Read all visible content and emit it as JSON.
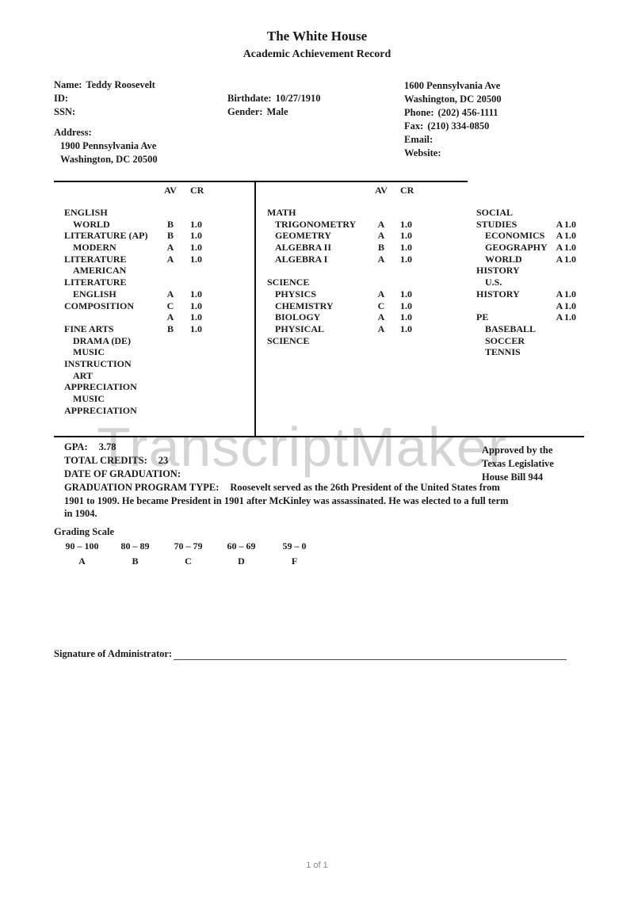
{
  "header": {
    "title": "The White House",
    "subtitle": "Academic Achievement Record"
  },
  "student": {
    "name_label": "Name:",
    "name": "Teddy Roosevelt",
    "id_label": "ID:",
    "id": "",
    "ssn_label": "SSN:",
    "ssn": "",
    "address_label": "Address:",
    "address_lines": [
      {
        "text": "1900 Pennsylvania Ave"
      },
      {
        "text": "Washington, DC 20500"
      }
    ],
    "birthdate_label": "Birthdate:",
    "birthdate": "10/27/1910",
    "gender_label": "Gender:",
    "gender": "Male"
  },
  "school": {
    "address_lines": [
      {
        "text": "1600 Pennsylvania Ave"
      },
      {
        "text": "Washington, DC 20500"
      }
    ],
    "phone_label": "Phone:",
    "phone": "(202) 456-1111",
    "fax_label": "Fax:",
    "fax": "(210) 334-0850",
    "email_label": "Email:",
    "email": "",
    "website_label": "Website:",
    "website": ""
  },
  "transcript": {
    "av_header": "AV",
    "cr_header": "CR",
    "col1_rows": [
      {
        "name": "ENGLISH",
        "indent": 0,
        "av": "",
        "cr": ""
      },
      {
        "name": "WORLD",
        "indent": 1,
        "av": "B",
        "cr": "1.0"
      },
      {
        "name": "LITERATURE (AP)",
        "indent": 0,
        "av": "B",
        "cr": "1.0"
      },
      {
        "name": "MODERN",
        "indent": 1,
        "av": "A",
        "cr": "1.0"
      },
      {
        "name": "LITERATURE",
        "indent": 0,
        "av": "A",
        "cr": "1.0"
      },
      {
        "name": "AMERICAN",
        "indent": 1,
        "av": "",
        "cr": ""
      },
      {
        "name": "LITERATURE",
        "indent": 0,
        "av": "",
        "cr": ""
      },
      {
        "name": "ENGLISH",
        "indent": 1,
        "av": "A",
        "cr": "1.0"
      },
      {
        "name": "COMPOSITION",
        "indent": 0,
        "av": "C",
        "cr": "1.0"
      },
      {
        "name": "",
        "indent": 0,
        "av": "A",
        "cr": "1.0"
      },
      {
        "name": "FINE ARTS",
        "indent": 0,
        "av": "B",
        "cr": "1.0"
      },
      {
        "name": "DRAMA (DE)",
        "indent": 1,
        "av": "",
        "cr": ""
      },
      {
        "name": "MUSIC",
        "indent": 1,
        "av": "",
        "cr": ""
      },
      {
        "name": "INSTRUCTION",
        "indent": 0,
        "av": "",
        "cr": ""
      },
      {
        "name": "ART",
        "indent": 1,
        "av": "",
        "cr": ""
      },
      {
        "name": "APPRECIATION",
        "indent": 0,
        "av": "",
        "cr": ""
      },
      {
        "name": "MUSIC",
        "indent": 1,
        "av": "",
        "cr": ""
      },
      {
        "name": "APPRECIATION",
        "indent": 0,
        "av": "",
        "cr": ""
      }
    ],
    "col2_rows": [
      {
        "name": "MATH",
        "indent": 0,
        "av": "",
        "cr": ""
      },
      {
        "name": "TRIGONOMETRY",
        "indent": 1,
        "av": "A",
        "cr": "1.0"
      },
      {
        "name": "GEOMETRY",
        "indent": 1,
        "av": "A",
        "cr": "1.0"
      },
      {
        "name": "ALGEBRA II",
        "indent": 1,
        "av": "B",
        "cr": "1.0"
      },
      {
        "name": "ALGEBRA I",
        "indent": 1,
        "av": "A",
        "cr": "1.0"
      },
      {
        "name": "",
        "indent": 0,
        "av": "",
        "cr": ""
      },
      {
        "name": "SCIENCE",
        "indent": 0,
        "av": "",
        "cr": ""
      },
      {
        "name": "PHYSICS",
        "indent": 1,
        "av": "A",
        "cr": "1.0"
      },
      {
        "name": "CHEMISTRY",
        "indent": 1,
        "av": "C",
        "cr": "1.0"
      },
      {
        "name": "BIOLOGY",
        "indent": 1,
        "av": "A",
        "cr": "1.0"
      },
      {
        "name": "PHYSICAL",
        "indent": 1,
        "av": "A",
        "cr": "1.0"
      },
      {
        "name": "SCIENCE",
        "indent": 0,
        "av": "",
        "cr": ""
      }
    ],
    "col3_rows": [
      {
        "name": "SOCIAL",
        "indent": 0,
        "av": "",
        "cr": ""
      },
      {
        "name": "STUDIES",
        "indent": 0,
        "av": "A",
        "cr": "1.0"
      },
      {
        "name": "ECONOMICS",
        "indent": 1,
        "av": "A",
        "cr": "1.0"
      },
      {
        "name": "GEOGRAPHY",
        "indent": 1,
        "av": "A",
        "cr": "1.0"
      },
      {
        "name": "WORLD",
        "indent": 1,
        "av": "A",
        "cr": "1.0"
      },
      {
        "name": "HISTORY",
        "indent": 0,
        "av": "",
        "cr": ""
      },
      {
        "name": "U.S.",
        "indent": 1,
        "av": "",
        "cr": ""
      },
      {
        "name": "HISTORY",
        "indent": 0,
        "av": "A",
        "cr": "1.0"
      },
      {
        "name": "",
        "indent": 0,
        "av": "A",
        "cr": "1.0"
      },
      {
        "name": "PE",
        "indent": 0,
        "av": "A",
        "cr": "1.0"
      },
      {
        "name": "BASEBALL",
        "indent": 1,
        "av": "",
        "cr": ""
      },
      {
        "name": "SOCCER",
        "indent": 1,
        "av": "",
        "cr": ""
      },
      {
        "name": "TENNIS",
        "indent": 1,
        "av": "",
        "cr": ""
      }
    ]
  },
  "summary": {
    "gpa_label": "GPA:",
    "gpa": "3.78",
    "credits_label": "TOTAL CREDITS:",
    "credits": "23",
    "grad_date_label": "DATE OF GRADUATION:",
    "grad_date": "",
    "program_label": "GRADUATION PROGRAM TYPE:",
    "program_text": "Roosevelt served as the 26th President of the United States from 1901 to 1909. He became President in 1901 after McKinley was assassinated. He was elected to a full term in 1904."
  },
  "approval": {
    "lines": [
      {
        "text": "Approved by the"
      },
      {
        "text": "Texas Legislative"
      },
      {
        "text": "House Bill 944"
      }
    ]
  },
  "grading_scale": {
    "title": "Grading Scale",
    "cells": [
      {
        "range": "90 – 100",
        "letter": "A"
      },
      {
        "range": "80 – 89",
        "letter": "B"
      },
      {
        "range": "70 – 79",
        "letter": "C"
      },
      {
        "range": "60 – 69",
        "letter": "D"
      },
      {
        "range": "59 – 0",
        "letter": "F"
      }
    ]
  },
  "signature": {
    "label": "Signature of Administrator:"
  },
  "watermark": "TranscriptMaker",
  "footer": {
    "page_indicator": "1 of 1"
  }
}
